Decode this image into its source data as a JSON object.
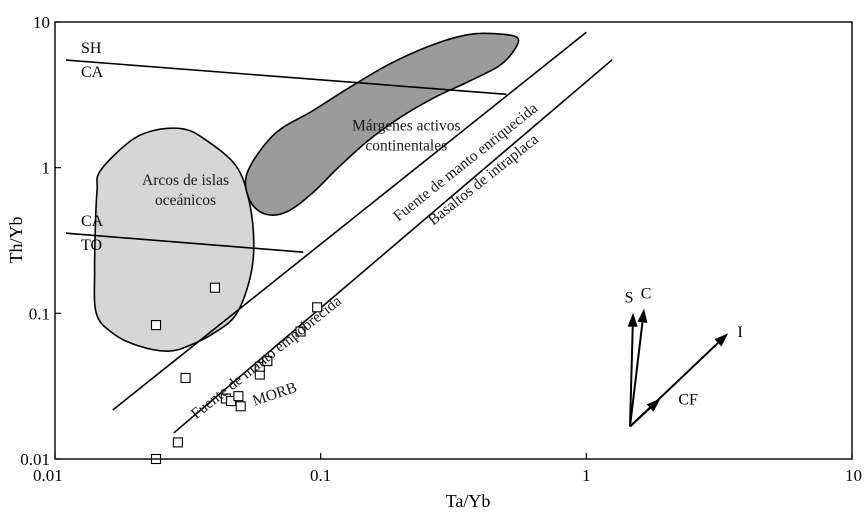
{
  "chart_data": {
    "type": "scatter",
    "x_scale": "log",
    "y_scale": "log",
    "xlabel": "Ta/Yb",
    "ylabel": "Th/Yb",
    "xlim": [
      0.01,
      10
    ],
    "ylim": [
      0.01,
      10
    ],
    "x_ticks": [
      "0.01",
      "0.1",
      "1",
      "10"
    ],
    "y_ticks": [
      "0.01",
      "0.1",
      "1",
      "10"
    ],
    "points": [
      {
        "x": 0.024,
        "y": 0.083
      },
      {
        "x": 0.04,
        "y": 0.15
      },
      {
        "x": 0.031,
        "y": 0.036
      },
      {
        "x": 0.029,
        "y": 0.013
      },
      {
        "x": 0.024,
        "y": 0.01
      },
      {
        "x": 0.044,
        "y": 0.026
      },
      {
        "x": 0.046,
        "y": 0.025
      },
      {
        "x": 0.049,
        "y": 0.027
      },
      {
        "x": 0.05,
        "y": 0.023
      },
      {
        "x": 0.059,
        "y": 0.038
      },
      {
        "x": 0.059,
        "y": 0.043
      },
      {
        "x": 0.063,
        "y": 0.047
      },
      {
        "x": 0.084,
        "y": 0.075
      },
      {
        "x": 0.097,
        "y": 0.11
      }
    ],
    "regions": [
      {
        "label": "Arcos de islas\noceánicos",
        "fill": "#d6d6d6",
        "outline": [
          [
            0.0148,
            0.95
          ],
          [
            0.019,
            1.5
          ],
          [
            0.0235,
            1.8
          ],
          [
            0.03,
            1.85
          ],
          [
            0.036,
            1.6
          ],
          [
            0.048,
            1.03
          ],
          [
            0.054,
            0.57
          ],
          [
            0.056,
            0.29
          ],
          [
            0.054,
            0.17
          ],
          [
            0.048,
            0.098
          ],
          [
            0.04,
            0.074
          ],
          [
            0.032,
            0.06
          ],
          [
            0.0265,
            0.055
          ],
          [
            0.0205,
            0.06
          ],
          [
            0.0165,
            0.073
          ],
          [
            0.0143,
            0.1
          ],
          [
            0.0141,
            0.2
          ],
          [
            0.0142,
            0.42
          ],
          [
            0.0144,
            0.7
          ]
        ],
        "label_x": 0.031,
        "label_y": 0.76
      },
      {
        "label": "Márgenes activos\ncontinentales",
        "fill": "#9b9b9b",
        "outline": [
          [
            0.053,
            0.93
          ],
          [
            0.067,
            1.7
          ],
          [
            0.093,
            2.45
          ],
          [
            0.13,
            3.6
          ],
          [
            0.18,
            5.1
          ],
          [
            0.26,
            6.9
          ],
          [
            0.36,
            8.2
          ],
          [
            0.46,
            8.3
          ],
          [
            0.55,
            7.8
          ],
          [
            0.535,
            6.4
          ],
          [
            0.47,
            5.0
          ],
          [
            0.36,
            3.9
          ],
          [
            0.27,
            3.05
          ],
          [
            0.2,
            2.22
          ],
          [
            0.15,
            1.52
          ],
          [
            0.115,
            0.98
          ],
          [
            0.094,
            0.68
          ],
          [
            0.075,
            0.5
          ],
          [
            0.062,
            0.48
          ],
          [
            0.054,
            0.6
          ]
        ],
        "label_x": 0.21,
        "label_y": 1.8
      }
    ],
    "lines": [
      {
        "x1": 0.011,
        "y1": 5.48,
        "x2": 0.5,
        "y2": 3.19,
        "label_top": "SH",
        "label_bottom": "CA",
        "label_x": 0.011,
        "label_y": 5.48
      },
      {
        "x1": 0.011,
        "y1": 0.355,
        "x2": 0.086,
        "y2": 0.263,
        "label_top": "CA",
        "label_bottom": "TO",
        "label_x": 0.011,
        "label_y": 0.355
      }
    ],
    "mantle_array": {
      "upper": {
        "x1": 0.0165,
        "y1": 0.0217,
        "x2": 1.0,
        "y2": 8.5
      },
      "lower": {
        "x1": 0.028,
        "y1": 0.0151,
        "x2": 1.25,
        "y2": 5.5
      }
    },
    "annotations": [
      {
        "text": "Fuente de manto enriquecida",
        "x": 0.36,
        "y": 1.03
      },
      {
        "text": "Basaltos de intraplaca",
        "x": 0.42,
        "y": 0.78
      },
      {
        "text": "Fuente de manto empobrecida",
        "x": 0.064,
        "y": 0.047
      },
      {
        "text": "MORB",
        "x": 0.068,
        "y": 0.026
      }
    ],
    "vectors": {
      "origin": {
        "x": 1.46,
        "y": 0.0167
      },
      "arrows": [
        {
          "label": "S",
          "x": 1.5,
          "y": 0.101
        },
        {
          "label": "C",
          "x": 1.65,
          "y": 0.108
        },
        {
          "label": "I",
          "x": 3.42,
          "y": 0.073
        },
        {
          "label": "CF",
          "x": 1.9,
          "y": 0.026
        }
      ]
    }
  }
}
